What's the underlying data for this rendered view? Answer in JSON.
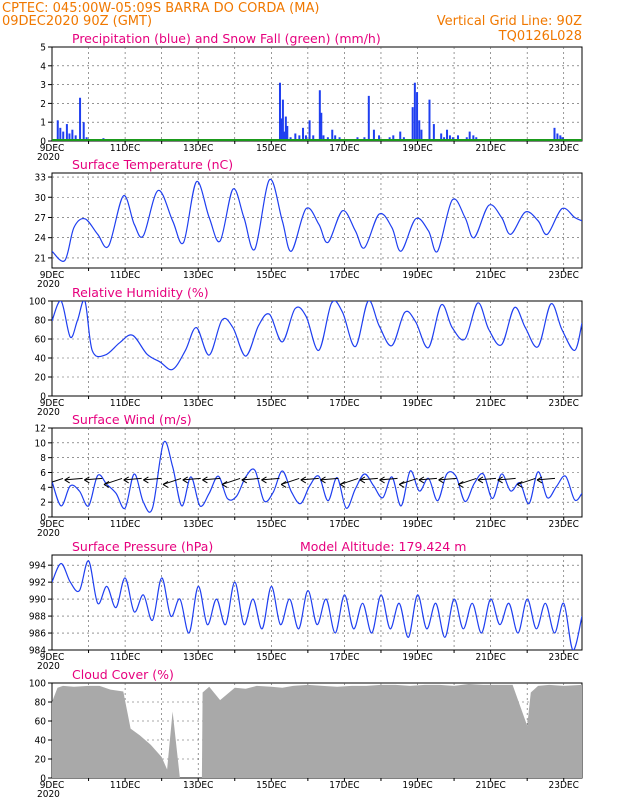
{
  "header": {
    "line1": "CPTEC:   045:00W-05:09S   BARRA DO CORDA (MA)",
    "line2_left": "09DEC2020 90Z (GMT)",
    "line2_right": "Vertical Grid Line: 90Z",
    "line3_right": "TQ0126L028"
  },
  "colors": {
    "header": "#f07800",
    "panel_title": "#e6007e",
    "series_blue": "#1f3ff0",
    "snow_green": "#1a9a1a",
    "cloud_gray": "#a9a9a9",
    "grid": "#555555"
  },
  "x_axis": {
    "days": [
      "9DEC",
      "11DEC",
      "13DEC",
      "15DEC",
      "17DEC",
      "19DEC",
      "21DEC",
      "23DEC"
    ],
    "cut_year_label": "2020"
  },
  "chart_data": [
    {
      "type": "bar",
      "title": "Precipitation (blue) and Snow Fall (green) (mm/h)",
      "ylim": [
        0,
        5
      ],
      "yticks": [
        0,
        1,
        2,
        3,
        4,
        5
      ],
      "x_unit": "days since 9DEC",
      "series": [
        {
          "name": "Precipitation",
          "x": [
            0.13,
            0.2,
            0.28,
            0.38,
            0.45,
            0.53,
            0.62,
            0.74,
            0.84,
            0.92,
            1.34,
            1.38,
            6.21,
            6.25,
            6.29,
            6.33,
            6.37,
            6.41,
            6.5,
            6.63,
            6.74,
            6.84,
            6.92,
            7.02,
            7.12,
            7.3,
            7.34,
            7.4,
            7.52,
            7.64,
            7.72,
            7.84,
            8.05,
            8.33,
            8.38,
            8.52,
            8.64,
            8.78,
            8.92,
            9.1,
            9.21,
            9.31,
            9.41,
            9.5,
            9.6,
            9.84,
            9.9,
            9.96,
            10.02,
            10.08,
            10.3,
            10.42,
            10.62,
            10.7,
            10.78,
            10.86,
            10.94,
            11.08,
            11.32,
            11.4,
            11.5,
            11.58,
            13.72,
            13.8,
            13.88,
            13.94
          ],
          "values": [
            1.1,
            0.7,
            0.5,
            0.9,
            0.4,
            0.6,
            0.3,
            2.3,
            1.0,
            0.2,
            0.1,
            0.15,
            3.1,
            1.2,
            2.2,
            0.5,
            1.3,
            0.8,
            0.2,
            0.4,
            0.3,
            0.7,
            0.3,
            1.1,
            0.3,
            2.7,
            1.5,
            0.3,
            0.2,
            0.6,
            0.3,
            0.2,
            0.1,
            0.2,
            0.1,
            0.2,
            2.4,
            0.6,
            0.3,
            0.1,
            0.2,
            0.3,
            0.1,
            0.5,
            0.2,
            1.8,
            3.1,
            2.6,
            1.1,
            0.6,
            2.2,
            0.9,
            0.4,
            0.2,
            0.6,
            0.3,
            0.2,
            0.3,
            0.2,
            0.5,
            0.3,
            0.2,
            0.7,
            0.4,
            0.3,
            0.2
          ]
        },
        {
          "name": "Snow Fall",
          "x": [
            0,
            14.5
          ],
          "values": [
            0,
            0
          ]
        }
      ]
    },
    {
      "type": "line",
      "title": "Surface Temperature (nC)",
      "ylim": [
        19.5,
        33.6
      ],
      "yticks": [
        21,
        24,
        27,
        30,
        33
      ],
      "x_unit": "days since 9DEC",
      "series": [
        {
          "name": "Surface Temperature",
          "x": [
            0,
            0.35,
            0.6,
            0.9,
            1.25,
            1.55,
            1.95,
            2.25,
            2.5,
            2.9,
            3.3,
            3.6,
            3.95,
            4.3,
            4.6,
            4.95,
            5.25,
            5.55,
            5.95,
            6.3,
            6.55,
            6.95,
            7.3,
            7.55,
            7.95,
            8.3,
            8.55,
            8.95,
            9.3,
            9.55,
            9.95,
            10.3,
            10.55,
            10.95,
            11.3,
            11.55,
            11.95,
            12.3,
            12.55,
            12.95,
            13.3,
            13.55,
            13.95,
            14.3,
            14.5
          ],
          "values": [
            22,
            20.6,
            25.5,
            26.8,
            24.5,
            22.8,
            30.2,
            26,
            24.3,
            31,
            26.5,
            23.3,
            32.3,
            27,
            23.5,
            31.2,
            27,
            22.3,
            32.6,
            26.5,
            22,
            28.3,
            26,
            23.3,
            28,
            25,
            22.5,
            27.5,
            25.5,
            22,
            26.8,
            25,
            22,
            29.6,
            27,
            24,
            28.8,
            27,
            24.5,
            27.8,
            26.5,
            24.5,
            28.3,
            27,
            26.5
          ]
        }
      ]
    },
    {
      "type": "line",
      "title": "Relative Humidity (%)",
      "ylim": [
        0,
        100
      ],
      "yticks": [
        0,
        20,
        40,
        60,
        80,
        100
      ],
      "x_unit": "days since 9DEC",
      "series": [
        {
          "name": "Relative Humidity",
          "x": [
            0,
            0.25,
            0.5,
            0.7,
            0.9,
            1.1,
            1.45,
            1.85,
            2.2,
            2.6,
            2.95,
            3.3,
            3.65,
            3.95,
            4.3,
            4.65,
            4.95,
            5.3,
            5.65,
            5.95,
            6.3,
            6.65,
            6.95,
            7.3,
            7.65,
            7.95,
            8.3,
            8.65,
            8.95,
            9.3,
            9.65,
            9.95,
            10.3,
            10.65,
            10.95,
            11.3,
            11.65,
            11.95,
            12.3,
            12.65,
            12.95,
            13.3,
            13.65,
            13.95,
            14.3,
            14.5
          ],
          "values": [
            79,
            100,
            62,
            80,
            100,
            48,
            43,
            56,
            64,
            44,
            36,
            28,
            48,
            72,
            43,
            80,
            72,
            42,
            74,
            86,
            57,
            92,
            84,
            48,
            98,
            88,
            52,
            100,
            74,
            53,
            88,
            78,
            51,
            96,
            72,
            60,
            98,
            70,
            54,
            93,
            72,
            52,
            97,
            70,
            48,
            77
          ]
        }
      ]
    },
    {
      "type": "line",
      "title": "Surface Wind (m/s)",
      "ylim": [
        0,
        12
      ],
      "yticks": [
        0,
        2,
        4,
        6,
        8,
        10,
        12
      ],
      "x_unit": "days since 9DEC",
      "series": [
        {
          "name": "Surface Wind",
          "x": [
            0,
            0.25,
            0.5,
            0.75,
            1.0,
            1.25,
            1.5,
            1.75,
            2.0,
            2.25,
            2.5,
            2.75,
            3.05,
            3.3,
            3.55,
            3.8,
            4.05,
            4.3,
            4.55,
            4.8,
            5.05,
            5.3,
            5.55,
            5.8,
            6.05,
            6.3,
            6.55,
            6.8,
            7.05,
            7.3,
            7.55,
            7.8,
            8.05,
            8.3,
            8.55,
            8.8,
            9.05,
            9.3,
            9.55,
            9.8,
            10.05,
            10.3,
            10.55,
            10.8,
            11.05,
            11.3,
            11.55,
            11.8,
            12.05,
            12.3,
            12.55,
            12.8,
            13.05,
            13.3,
            13.55,
            13.8,
            14.05,
            14.3,
            14.5
          ],
          "values": [
            4.8,
            1.5,
            4.2,
            3.5,
            1.5,
            5.6,
            4.4,
            3.2,
            1.2,
            5.8,
            2,
            1.2,
            10,
            6.8,
            1.5,
            5.4,
            1.5,
            3.2,
            5.5,
            2.5,
            2.8,
            5.4,
            6.3,
            2.2,
            3.3,
            6.2,
            3.4,
            1.8,
            4.2,
            5.5,
            2.2,
            5.3,
            1.2,
            3.8,
            5.8,
            4.2,
            2.6,
            5.4,
            1.5,
            6.2,
            3.5,
            5.2,
            2.2,
            5.8,
            5.5,
            2.1,
            4.5,
            5.8,
            2.5,
            5.8,
            3.5,
            4.6,
            1.8,
            6.1,
            2.6,
            4.1,
            5.5,
            2.3,
            3.2
          ]
        }
      ],
      "wind_arrows_count": 26
    },
    {
      "type": "line",
      "title": "Surface Pressure (hPa)",
      "annotation": "Model Altitude: 179.424 m",
      "ylim": [
        984,
        995.2
      ],
      "yticks": [
        984,
        986,
        988,
        990,
        992,
        994
      ],
      "x_unit": "days since 9DEC",
      "series": [
        {
          "name": "Surface Pressure",
          "x": [
            0,
            0.25,
            0.5,
            0.75,
            1.0,
            1.25,
            1.5,
            1.75,
            2.0,
            2.25,
            2.5,
            2.75,
            3.0,
            3.25,
            3.5,
            3.75,
            4.0,
            4.25,
            4.5,
            4.75,
            5.0,
            5.25,
            5.5,
            5.75,
            6.0,
            6.25,
            6.5,
            6.75,
            7.0,
            7.25,
            7.5,
            7.75,
            8.0,
            8.25,
            8.5,
            8.75,
            9.0,
            9.25,
            9.5,
            9.75,
            10.0,
            10.25,
            10.5,
            10.75,
            11.0,
            11.25,
            11.5,
            11.75,
            12.0,
            12.25,
            12.5,
            12.75,
            13.0,
            13.25,
            13.5,
            13.75,
            14.0,
            14.25,
            14.5
          ],
          "values": [
            992,
            994.2,
            992,
            991,
            994.5,
            989.5,
            991.5,
            989,
            992.5,
            988.5,
            990.5,
            987.5,
            992.5,
            988,
            990,
            986,
            991.5,
            987,
            990,
            987,
            992,
            987,
            990,
            986.5,
            991.5,
            987,
            990,
            986.5,
            991,
            987,
            990,
            986,
            990.5,
            986.5,
            989.5,
            986,
            990.5,
            986.5,
            989.5,
            985.5,
            990.5,
            986.5,
            989.5,
            985.5,
            990,
            986.5,
            989.5,
            986,
            990,
            987,
            989.5,
            986,
            990,
            986.5,
            989.5,
            986,
            989.5,
            984,
            988
          ]
        }
      ]
    },
    {
      "type": "area",
      "title": "Cloud Cover (%)",
      "ylim": [
        0,
        100
      ],
      "yticks": [
        0,
        20,
        40,
        60,
        80,
        100
      ],
      "x_unit": "days since 9DEC",
      "series": [
        {
          "name": "Cloud Cover",
          "x": [
            0,
            0.15,
            0.3,
            0.6,
            1.0,
            1.3,
            1.6,
            1.95,
            2.15,
            2.4,
            2.7,
            3.0,
            3.15,
            3.3,
            3.5,
            3.7,
            4.0,
            4.1,
            4.12,
            4.3,
            4.6,
            5.0,
            5.3,
            5.6,
            6.0,
            6.3,
            6.6,
            7.0,
            7.4,
            7.8,
            8.2,
            8.6,
            9.0,
            9.4,
            9.8,
            10.2,
            10.6,
            11.0,
            11.4,
            11.8,
            12.2,
            12.6,
            13.0,
            13.1,
            13.3,
            13.6,
            14.0,
            14.5
          ],
          "values": [
            80,
            95,
            97,
            96,
            97,
            97,
            93,
            91,
            52,
            45,
            35,
            22,
            9,
            70,
            0,
            0,
            0,
            0,
            90,
            96,
            82,
            95,
            94,
            97,
            96,
            95,
            97,
            98,
            97,
            96,
            97,
            97,
            98,
            98,
            97,
            98,
            98,
            97,
            99,
            98,
            98,
            98,
            55,
            90,
            97,
            98,
            97,
            98
          ]
        }
      ]
    }
  ]
}
